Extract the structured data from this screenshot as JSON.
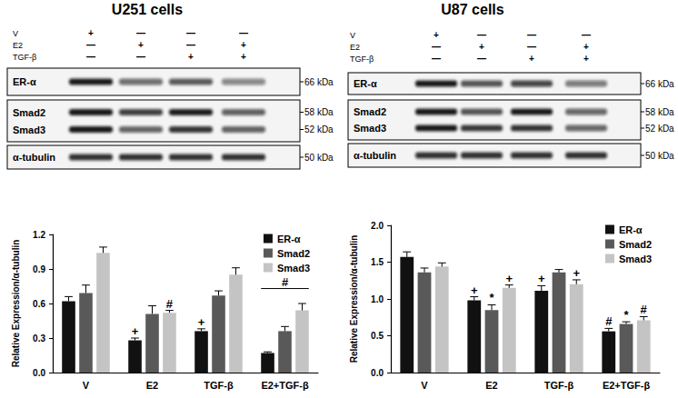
{
  "blots": [
    {
      "title": "U251 cells",
      "conditions": [
        {
          "label": "V",
          "marks": [
            "+",
            "—",
            "—",
            "—"
          ]
        },
        {
          "label": "E2",
          "marks": [
            "—",
            "+",
            "—",
            "+"
          ]
        },
        {
          "label": "TGF-β",
          "marks": [
            "—",
            "—",
            "+",
            "+"
          ]
        }
      ],
      "rows": [
        {
          "bands": [
            "ER-α"
          ],
          "sizes": [
            "66 kDa"
          ]
        },
        {
          "bands": [
            "Smad2",
            "Smad3"
          ],
          "sizes": [
            "58 kDa",
            "52 kDa"
          ]
        },
        {
          "bands": [
            "α-tubulin"
          ],
          "sizes": [
            "50 kDa"
          ]
        }
      ]
    },
    {
      "title": "U87 cells",
      "conditions": [
        {
          "label": "V",
          "marks": [
            "+",
            "—",
            "—",
            "—"
          ]
        },
        {
          "label": "E2",
          "marks": [
            "—",
            "+",
            "—",
            "+"
          ]
        },
        {
          "label": "TGF-β",
          "marks": [
            "—",
            "—",
            "+",
            "+"
          ]
        }
      ],
      "rows": [
        {
          "bands": [
            "ER-α"
          ],
          "sizes": [
            "66 kDa"
          ]
        },
        {
          "bands": [
            "Smad2",
            "Smad3"
          ],
          "sizes": [
            "58 kDa",
            "52 kDa"
          ]
        },
        {
          "bands": [
            "α-tubulin"
          ],
          "sizes": [
            "50 kDa"
          ]
        }
      ]
    }
  ],
  "chart_data": [
    {
      "type": "bar",
      "categories": [
        "V",
        "E2",
        "TGF-β",
        "E2+TGF-β"
      ],
      "y_label": "Relative Expression/α-tubulin",
      "ylim": [
        0,
        1.2
      ],
      "yticks": [
        {
          "value": 0,
          "label": "0.0"
        },
        0.3,
        0.6,
        0.9,
        1.2
      ],
      "legend": "top-right",
      "series": [
        {
          "name": "ER-α",
          "color": "#111111",
          "values": [
            0.62,
            0.28,
            0.36,
            0.17
          ],
          "errors": [
            0.04,
            0.02,
            0.02,
            0.01
          ],
          "annotations": [
            null,
            "+",
            "+",
            null
          ]
        },
        {
          "name": "Smad2",
          "color": "#595959",
          "values": [
            0.69,
            0.51,
            0.67,
            0.36
          ],
          "errors": [
            0.07,
            0.07,
            0.04,
            0.04
          ],
          "annotations": [
            null,
            null,
            null,
            null
          ]
        },
        {
          "name": "Smad3",
          "color": "#c4c4c4",
          "values": [
            1.04,
            0.52,
            0.85,
            0.54
          ],
          "errors": [
            0.05,
            0.02,
            0.06,
            0.06
          ],
          "annotations": [
            null,
            "#",
            null,
            null
          ]
        }
      ],
      "group_annotations": [
        {
          "category": "E2+TGF-β",
          "text": "#",
          "value": 0.73
        }
      ]
    },
    {
      "type": "bar",
      "categories": [
        "V",
        "E2",
        "TGF-β",
        "E2+TGF-β"
      ],
      "y_label": "Relative Expression/α-tubulin",
      "ylim": [
        0,
        2.0
      ],
      "yticks": [
        {
          "value": 0,
          "label": "0.0"
        },
        0.5,
        {
          "value": 1,
          "label": "1.0"
        },
        1.5,
        {
          "value": 2,
          "label": "2.0"
        }
      ],
      "legend": "top-right",
      "series": [
        {
          "name": "ER-α",
          "color": "#111111",
          "values": [
            1.57,
            0.98,
            1.11,
            0.56
          ],
          "errors": [
            0.07,
            0.05,
            0.07,
            0.04
          ],
          "annotations": [
            null,
            "+",
            "+",
            "#"
          ]
        },
        {
          "name": "Smad2",
          "color": "#595959",
          "values": [
            1.36,
            0.85,
            1.36,
            0.66
          ],
          "errors": [
            0.06,
            0.07,
            0.04,
            0.03
          ],
          "annotations": [
            null,
            "*",
            null,
            "*"
          ]
        },
        {
          "name": "Smad3",
          "color": "#c4c4c4",
          "values": [
            1.44,
            1.15,
            1.2,
            0.71
          ],
          "errors": [
            0.05,
            0.04,
            0.06,
            0.05
          ],
          "annotations": [
            null,
            "+",
            "+",
            "#"
          ]
        }
      ],
      "group_annotations": []
    }
  ]
}
